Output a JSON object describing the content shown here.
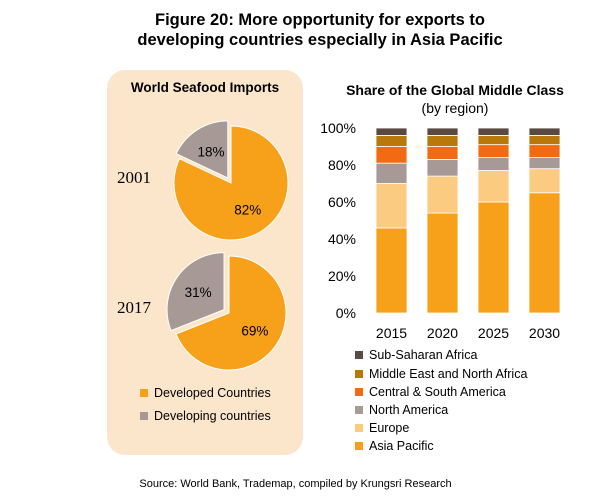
{
  "figure_title_line1": "Figure 20: More opportunity for exports to",
  "figure_title_line2": "developing countries especially in Asia Pacific",
  "left_panel": {
    "title": "World Seafood Imports",
    "legend": [
      {
        "label": "Developed Countries",
        "color": "#F7A11A"
      },
      {
        "label": "Developing countries",
        "color": "#A79A96"
      }
    ]
  },
  "right_panel": {
    "title": "Share of the Global Middle Class",
    "subtitle": "(by region)",
    "legend": [
      {
        "label": "Sub-Saharan Africa",
        "color": "#5A4A42"
      },
      {
        "label": "Middle East and North Africa",
        "color": "#B8790A"
      },
      {
        "label": "Central & South America",
        "color": "#F26A12"
      },
      {
        "label": "North America",
        "color": "#A79A96"
      },
      {
        "label": "Europe",
        "color": "#FCCB82"
      },
      {
        "label": "Asia Pacific",
        "color": "#F7A11A"
      }
    ]
  },
  "source": "Source: World Bank, Trademap, compiled by Krungsri Research",
  "chart_data": [
    {
      "type": "pie",
      "title": "World Seafood Imports",
      "label": "2001",
      "slices": [
        {
          "name": "Developed Countries",
          "value": 82,
          "label": "82%",
          "color": "#F7A11A"
        },
        {
          "name": "Developing countries",
          "value": 18,
          "label": "18%",
          "color": "#A79A96"
        }
      ]
    },
    {
      "type": "pie",
      "title": "World Seafood Imports",
      "label": "2017",
      "slices": [
        {
          "name": "Developed Countries",
          "value": 69,
          "label": "69%",
          "color": "#F7A11A"
        },
        {
          "name": "Developing countries",
          "value": 31,
          "label": "31%",
          "color": "#A79A96"
        }
      ]
    },
    {
      "type": "bar",
      "stacked": true,
      "title": "Share of the Global Middle Class",
      "subtitle": "(by region)",
      "categories": [
        "2015",
        "2020",
        "2025",
        "2030"
      ],
      "ylim": [
        0,
        100
      ],
      "yticks": [
        "0%",
        "20%",
        "40%",
        "60%",
        "80%",
        "100%"
      ],
      "legend_position": "bottom",
      "series": [
        {
          "name": "Asia Pacific",
          "color": "#F7A11A",
          "values": [
            46,
            54,
            60,
            65
          ]
        },
        {
          "name": "Europe",
          "color": "#FCCB82",
          "values": [
            24,
            20,
            17,
            13
          ]
        },
        {
          "name": "North America",
          "color": "#A79A96",
          "values": [
            11,
            9,
            7,
            6
          ]
        },
        {
          "name": "Central & South America",
          "color": "#F26A12",
          "values": [
            9,
            7,
            7,
            7
          ]
        },
        {
          "name": "Middle East and North Africa",
          "color": "#B8790A",
          "values": [
            6,
            6,
            5,
            5
          ]
        },
        {
          "name": "Sub-Saharan Africa",
          "color": "#5A4A42",
          "values": [
            4,
            4,
            4,
            4
          ]
        }
      ]
    }
  ]
}
